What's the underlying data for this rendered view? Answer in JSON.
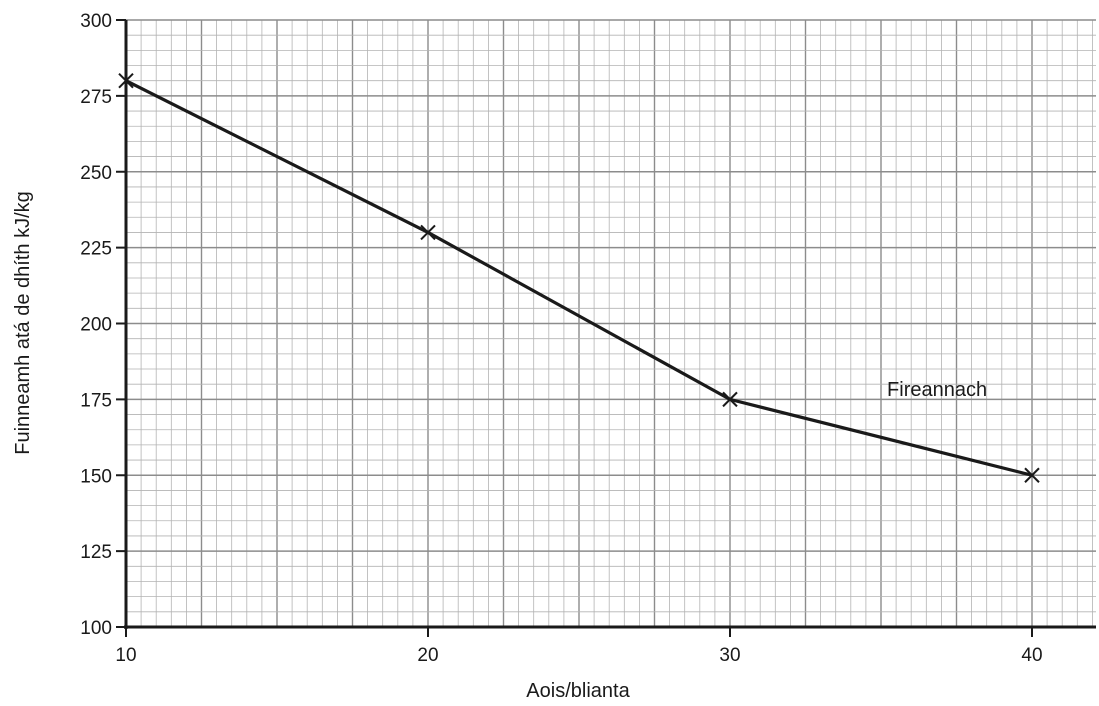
{
  "chart_data": {
    "type": "line",
    "title": "",
    "xlabel": "Aois/blianta",
    "ylabel": "Fuinneamh atá de dhíth kJ/kg",
    "xlim": [
      10,
      42
    ],
    "ylim": [
      100,
      300
    ],
    "x_ticks": [
      10,
      20,
      30,
      40
    ],
    "y_ticks": [
      100,
      125,
      150,
      175,
      200,
      225,
      250,
      275,
      300
    ],
    "grid": true,
    "series": [
      {
        "name": "Fireannach",
        "x": [
          10,
          20,
          30,
          40
        ],
        "y": [
          280,
          230,
          175,
          150
        ],
        "marker": "x",
        "color": "#1a1a1a"
      }
    ]
  },
  "colors": {
    "grid_fine": "#b3b3b3",
    "grid_major": "#8c8c8c",
    "axis": "#1a1a1a"
  }
}
